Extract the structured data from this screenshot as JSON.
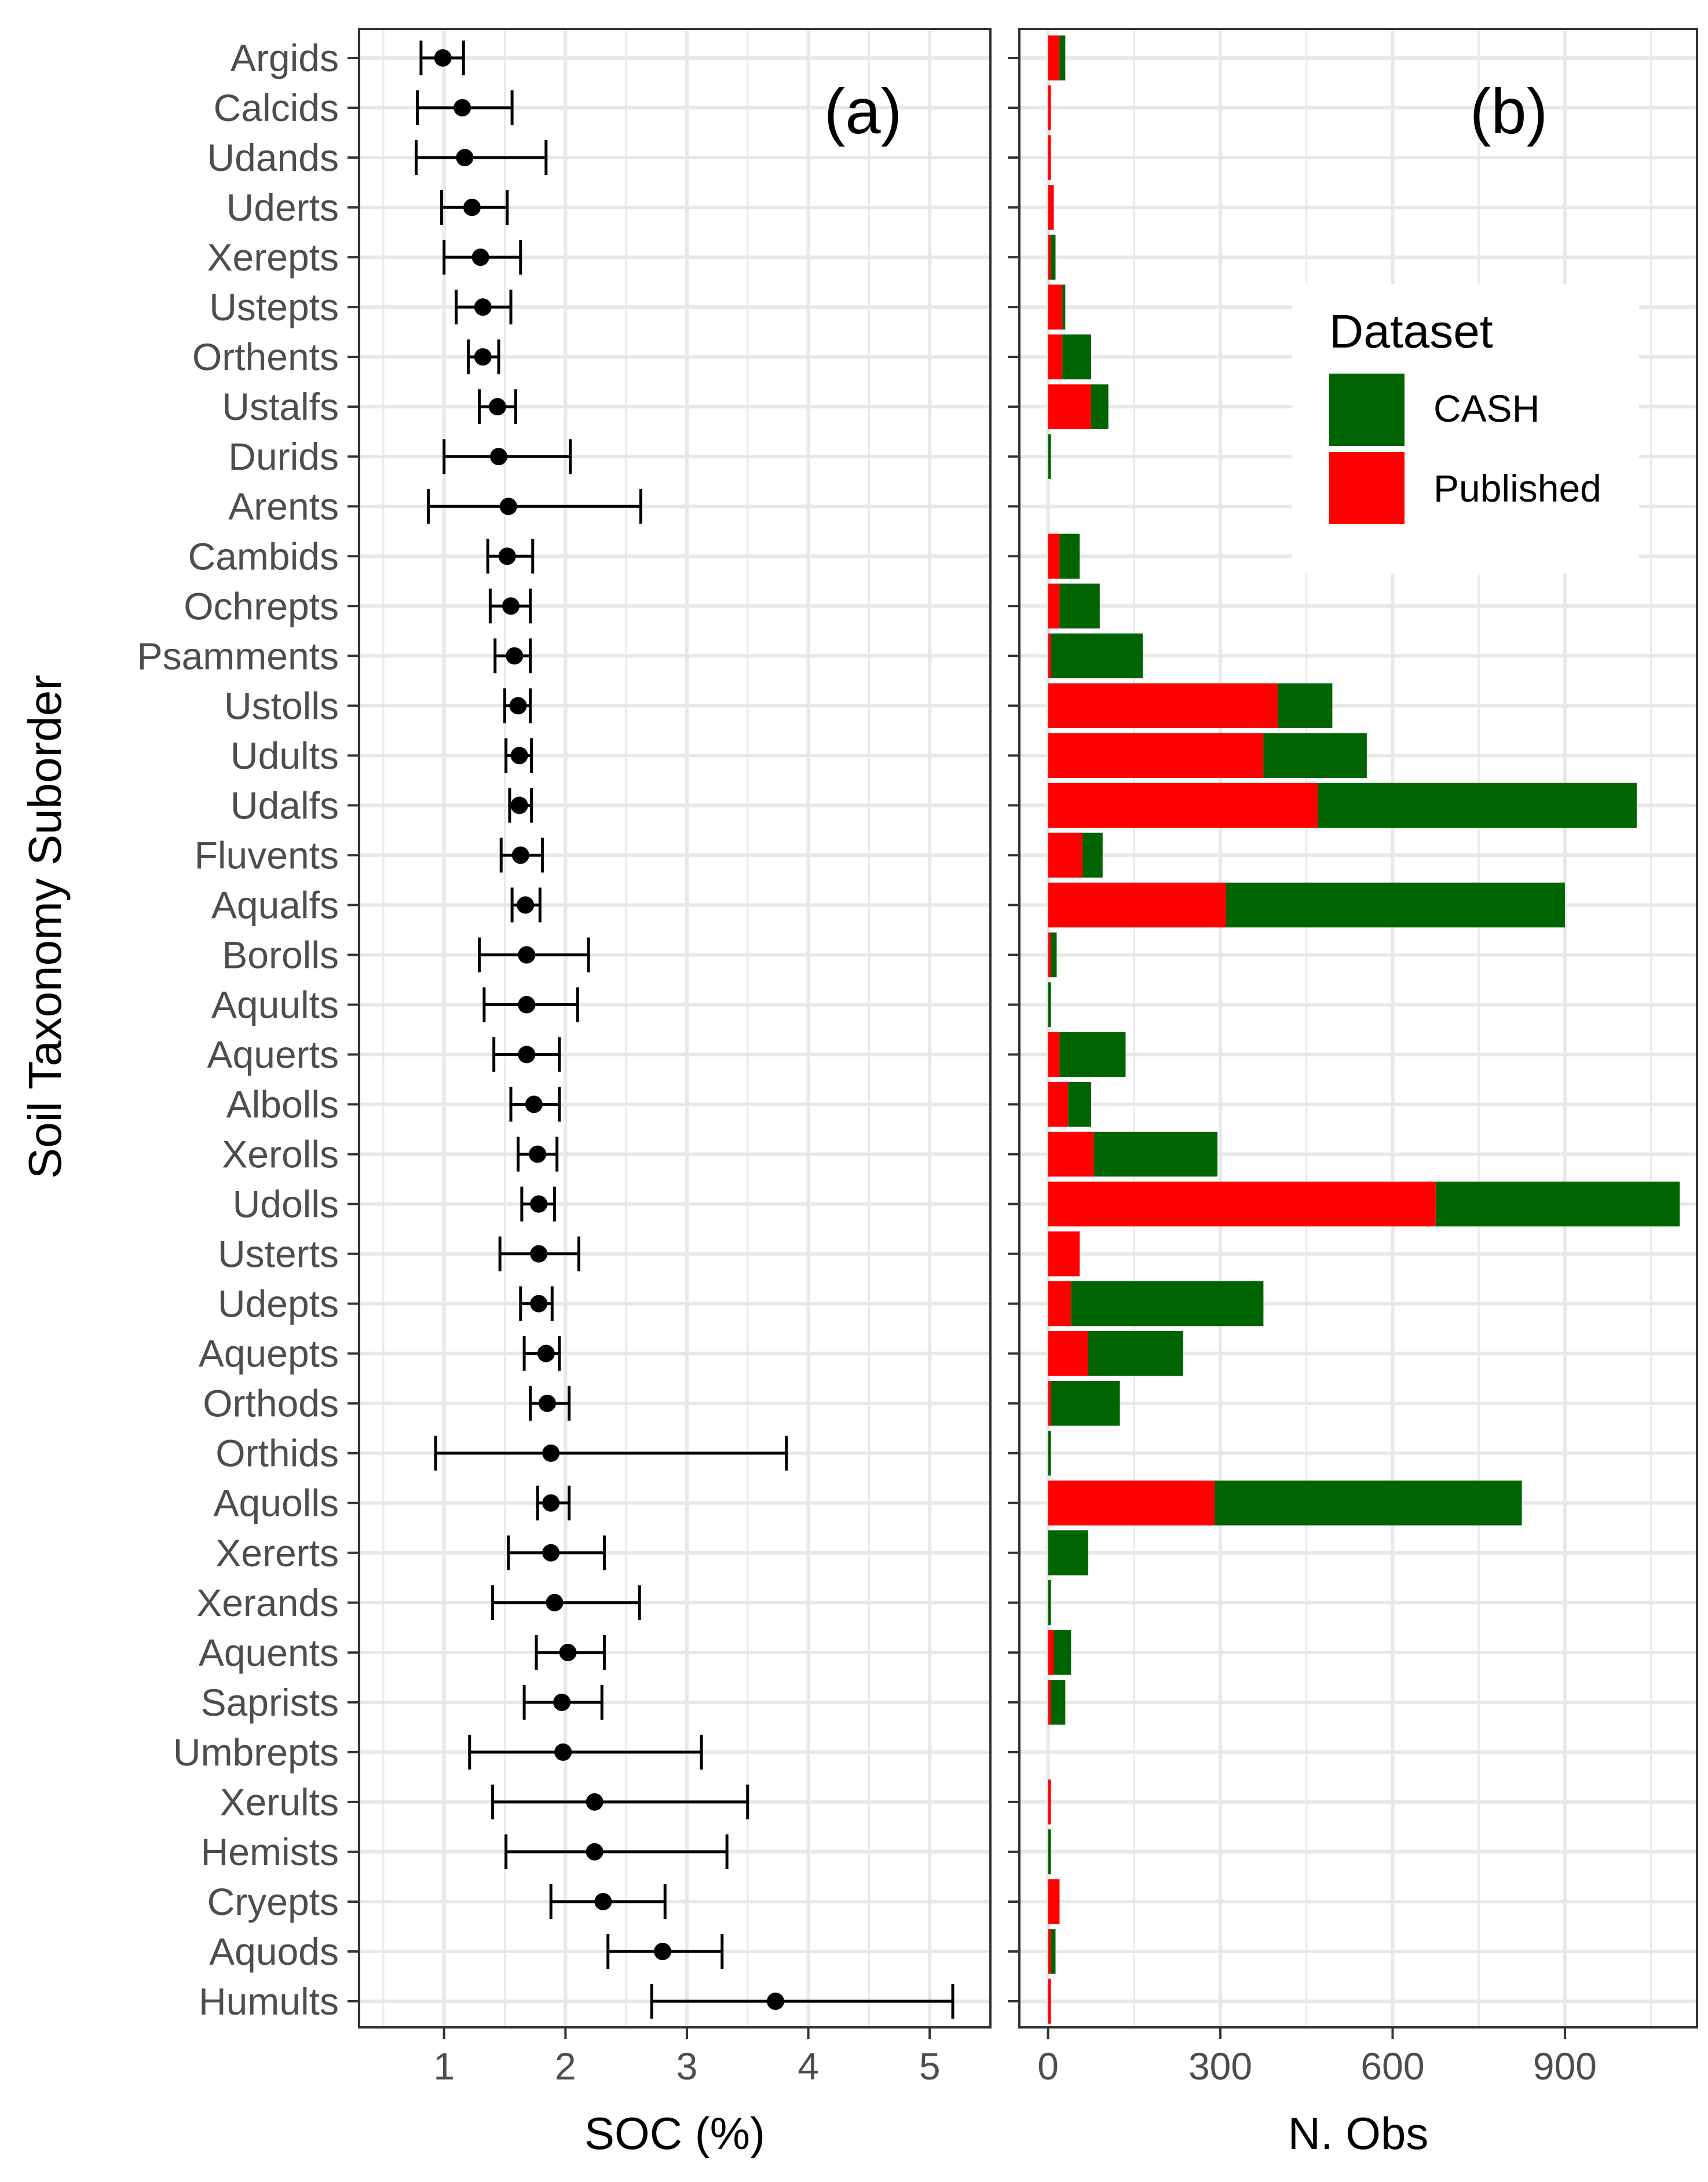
{
  "figure": {
    "ylabel": "Soil Taxonomy Suborder",
    "colors": {
      "published": "#ff0000",
      "cash": "#006400",
      "grid": "#e8e8e8",
      "point": "#000000"
    }
  },
  "chart_data": [
    {
      "type": "scatter",
      "panel": "(a)",
      "title": "(a)",
      "xlabel": "SOC (%)",
      "ylabel": "Soil Taxonomy Suborder",
      "xlim": [
        0.3,
        5.5
      ],
      "xticks": [
        1,
        2,
        3,
        4,
        5
      ],
      "grid": true,
      "categories": [
        "Argids",
        "Calcids",
        "Udands",
        "Uderts",
        "Xerepts",
        "Ustepts",
        "Orthents",
        "Ustalfs",
        "Durids",
        "Arents",
        "Cambids",
        "Ochrepts",
        "Psamments",
        "Ustolls",
        "Udults",
        "Udalfs",
        "Fluvents",
        "Aqualfs",
        "Borolls",
        "Aquults",
        "Aquerts",
        "Albolls",
        "Xerolls",
        "Udolls",
        "Usterts",
        "Udepts",
        "Aquepts",
        "Orthods",
        "Orthids",
        "Aquolls",
        "Xererts",
        "Xerands",
        "Aquents",
        "Saprists",
        "Umbrepts",
        "Xerults",
        "Hemists",
        "Cryepts",
        "Aquods",
        "Humults"
      ],
      "mean": [
        0.99,
        1.15,
        1.17,
        1.23,
        1.3,
        1.32,
        1.32,
        1.44,
        1.45,
        1.53,
        1.52,
        1.55,
        1.58,
        1.61,
        1.62,
        1.62,
        1.63,
        1.67,
        1.68,
        1.68,
        1.68,
        1.74,
        1.77,
        1.78,
        1.78,
        1.78,
        1.84,
        1.85,
        1.88,
        1.88,
        1.88,
        1.91,
        2.02,
        1.97,
        1.98,
        2.24,
        2.24,
        2.31,
        2.8,
        3.73
      ],
      "lower": [
        0.81,
        0.78,
        0.77,
        0.98,
        1.0,
        1.1,
        1.2,
        1.29,
        1.0,
        0.87,
        1.36,
        1.38,
        1.42,
        1.5,
        1.51,
        1.54,
        1.47,
        1.56,
        1.29,
        1.33,
        1.41,
        1.55,
        1.61,
        1.64,
        1.46,
        1.63,
        1.66,
        1.71,
        0.93,
        1.77,
        1.53,
        1.4,
        1.76,
        1.66,
        1.21,
        1.4,
        1.51,
        1.88,
        2.35,
        2.71
      ],
      "upper": [
        1.16,
        1.56,
        1.84,
        1.52,
        1.63,
        1.55,
        1.45,
        1.59,
        2.04,
        2.62,
        1.73,
        1.71,
        1.71,
        1.71,
        1.72,
        1.72,
        1.81,
        1.79,
        2.19,
        2.1,
        1.95,
        1.95,
        1.93,
        1.91,
        2.11,
        1.89,
        1.95,
        2.03,
        3.82,
        2.03,
        2.32,
        2.61,
        2.32,
        2.3,
        3.12,
        3.5,
        3.33,
        2.82,
        3.29,
        5.19
      ]
    },
    {
      "type": "bar",
      "stacked": true,
      "orientation": "horizontal",
      "panel": "(b)",
      "title": "(b)",
      "xlabel": "N. Obs",
      "xlim": [
        -50,
        1130
      ],
      "xticks": [
        0,
        300,
        600,
        900
      ],
      "grid": true,
      "legend": {
        "title": "Dataset",
        "position": "top-right",
        "entries": [
          "CASH",
          "Published"
        ]
      },
      "categories": [
        "Argids",
        "Calcids",
        "Udands",
        "Uderts",
        "Xerepts",
        "Ustepts",
        "Orthents",
        "Ustalfs",
        "Durids",
        "Arents",
        "Cambids",
        "Ochrepts",
        "Psamments",
        "Ustolls",
        "Udults",
        "Udalfs",
        "Fluvents",
        "Aqualfs",
        "Borolls",
        "Aquults",
        "Aquerts",
        "Albolls",
        "Xerolls",
        "Udolls",
        "Usterts",
        "Udepts",
        "Aquepts",
        "Orthods",
        "Orthids",
        "Aquolls",
        "Xererts",
        "Xerands",
        "Aquents",
        "Saprists",
        "Umbrepts",
        "Xerults",
        "Hemists",
        "Cryepts",
        "Aquods",
        "Humults"
      ],
      "series": [
        {
          "name": "Published",
          "color": "#ff0000",
          "values": [
            20,
            5,
            5,
            10,
            5,
            25,
            25,
            75,
            0,
            0,
            20,
            20,
            5,
            400,
            375,
            470,
            60,
            310,
            5,
            0,
            20,
            35,
            80,
            675,
            55,
            40,
            70,
            5,
            0,
            290,
            0,
            0,
            10,
            5,
            0,
            5,
            0,
            20,
            5,
            5
          ]
        },
        {
          "name": "CASH",
          "color": "#006400",
          "values": [
            10,
            0,
            0,
            0,
            8,
            5,
            50,
            30,
            5,
            0,
            35,
            70,
            160,
            95,
            180,
            555,
            35,
            590,
            10,
            5,
            115,
            40,
            215,
            425,
            0,
            335,
            165,
            120,
            5,
            535,
            70,
            5,
            30,
            25,
            0,
            0,
            5,
            0,
            8,
            0
          ]
        }
      ]
    }
  ]
}
